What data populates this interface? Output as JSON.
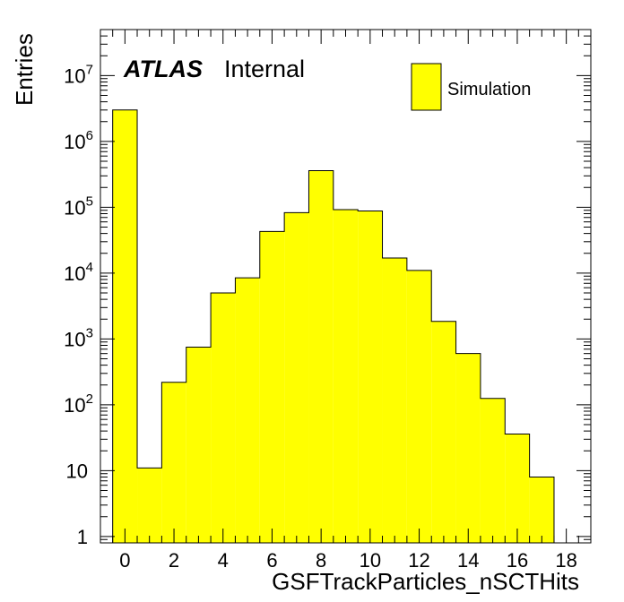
{
  "chart_data": {
    "type": "bar",
    "xlabel": "GSFTrackParticles_nSCTHits",
    "ylabel": "Entries",
    "xlim": [
      -1,
      19
    ],
    "ylim": [
      0.8,
      50000000
    ],
    "yscale": "log",
    "x_ticks": [
      0,
      2,
      4,
      6,
      8,
      10,
      12,
      14,
      16,
      18
    ],
    "y_ticks": [
      {
        "value": 1,
        "mant": "1",
        "exp": ""
      },
      {
        "value": 10,
        "mant": "10",
        "exp": ""
      },
      {
        "value": 100,
        "mant": "10",
        "exp": "2"
      },
      {
        "value": 1000,
        "mant": "10",
        "exp": "3"
      },
      {
        "value": 10000,
        "mant": "10",
        "exp": "4"
      },
      {
        "value": 100000,
        "mant": "10",
        "exp": "5"
      },
      {
        "value": 1000000,
        "mant": "10",
        "exp": "6"
      },
      {
        "value": 10000000,
        "mant": "10",
        "exp": "7"
      }
    ],
    "bins": [
      0,
      1,
      2,
      3,
      4,
      5,
      6,
      7,
      8,
      9,
      10,
      11,
      12,
      13,
      14,
      15,
      16,
      17
    ],
    "values": [
      3000000,
      11,
      220,
      750,
      5000,
      8500,
      43000,
      83000,
      360000,
      92000,
      88000,
      17000,
      11000,
      1850,
      600,
      125,
      36,
      8
    ],
    "fill_color": "#ffff00",
    "legend": {
      "label": "Simulation",
      "position": "top-right"
    },
    "grid": false
  },
  "atlas_label": "ATLAS",
  "internal_label": "Internal"
}
